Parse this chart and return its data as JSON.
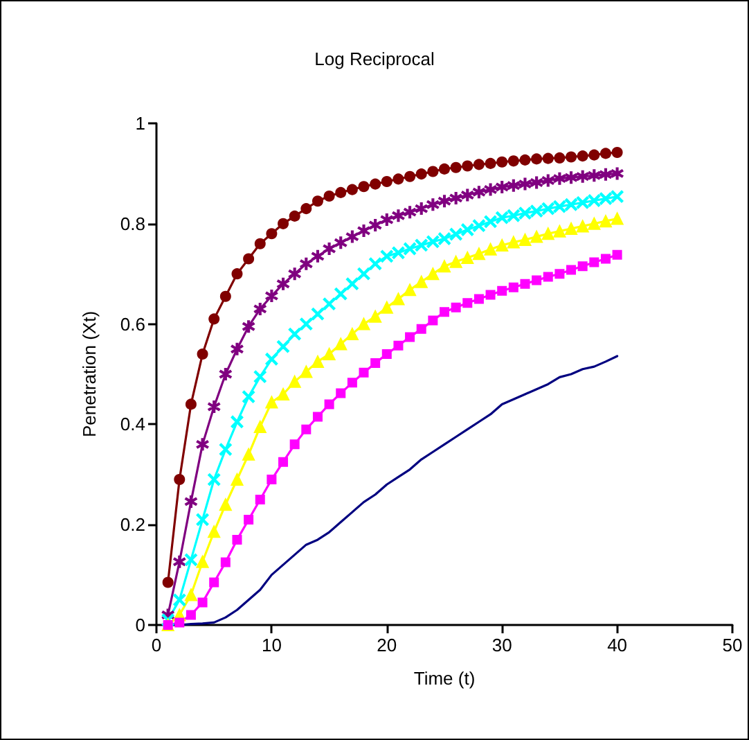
{
  "chart_data": {
    "type": "line",
    "title": "Log Reciprocal",
    "xlabel": "Time (t)",
    "ylabel": "Penetration (Xt)",
    "x": [
      1,
      2,
      3,
      4,
      5,
      6,
      7,
      8,
      9,
      10,
      11,
      12,
      13,
      14,
      15,
      16,
      17,
      18,
      19,
      20,
      21,
      22,
      23,
      24,
      25,
      26,
      27,
      28,
      29,
      30,
      31,
      32,
      33,
      34,
      35,
      36,
      37,
      38,
      39,
      40
    ],
    "xlim": [
      0,
      50
    ],
    "xticks": [
      0,
      10,
      20,
      30,
      40,
      50
    ],
    "ylim": [
      0,
      1
    ],
    "yticks": [
      0,
      0.2,
      0.4,
      0.6,
      0.8,
      1
    ],
    "line_style": "solid",
    "series": [
      {
        "color": "#800000",
        "marker": "circle",
        "values": [
          0.085,
          0.29,
          0.44,
          0.54,
          0.61,
          0.655,
          0.7,
          0.73,
          0.76,
          0.78,
          0.8,
          0.815,
          0.83,
          0.845,
          0.855,
          0.862,
          0.868,
          0.874,
          0.879,
          0.884,
          0.889,
          0.894,
          0.899,
          0.904,
          0.909,
          0.912,
          0.915,
          0.918,
          0.92,
          0.923,
          0.925,
          0.927,
          0.929,
          0.93,
          0.931,
          0.933,
          0.935,
          0.937,
          0.94,
          0.942
        ]
      },
      {
        "color": "#800080",
        "marker": "star",
        "values": [
          0.02,
          0.126,
          0.246,
          0.36,
          0.435,
          0.5,
          0.55,
          0.595,
          0.63,
          0.656,
          0.68,
          0.7,
          0.72,
          0.735,
          0.75,
          0.762,
          0.774,
          0.786,
          0.797,
          0.808,
          0.816,
          0.823,
          0.83,
          0.838,
          0.845,
          0.851,
          0.857,
          0.863,
          0.868,
          0.873,
          0.876,
          0.879,
          0.882,
          0.886,
          0.89,
          0.892,
          0.894,
          0.896,
          0.898,
          0.9
        ]
      },
      {
        "color": "#00ffff",
        "marker": "cross",
        "values": [
          0.01,
          0.05,
          0.13,
          0.21,
          0.29,
          0.35,
          0.405,
          0.455,
          0.495,
          0.53,
          0.555,
          0.58,
          0.6,
          0.62,
          0.64,
          0.66,
          0.68,
          0.7,
          0.72,
          0.735,
          0.742,
          0.75,
          0.757,
          0.764,
          0.77,
          0.779,
          0.788,
          0.796,
          0.804,
          0.812,
          0.816,
          0.821,
          0.825,
          0.83,
          0.834,
          0.838,
          0.842,
          0.846,
          0.85,
          0.854
        ]
      },
      {
        "color": "#ffff00",
        "marker": "triangle",
        "values": [
          0,
          0.02,
          0.06,
          0.126,
          0.186,
          0.24,
          0.29,
          0.34,
          0.395,
          0.444,
          0.46,
          0.485,
          0.505,
          0.525,
          0.54,
          0.56,
          0.58,
          0.6,
          0.615,
          0.633,
          0.65,
          0.668,
          0.684,
          0.7,
          0.715,
          0.724,
          0.732,
          0.74,
          0.749,
          0.757,
          0.763,
          0.768,
          0.774,
          0.78,
          0.785,
          0.79,
          0.795,
          0.8,
          0.805,
          0.81
        ]
      },
      {
        "color": "#ff00ff",
        "marker": "square",
        "values": [
          0,
          0.005,
          0.02,
          0.045,
          0.085,
          0.125,
          0.17,
          0.21,
          0.25,
          0.29,
          0.325,
          0.36,
          0.39,
          0.415,
          0.44,
          0.462,
          0.483,
          0.503,
          0.522,
          0.54,
          0.557,
          0.574,
          0.59,
          0.607,
          0.624,
          0.633,
          0.642,
          0.65,
          0.658,
          0.666,
          0.673,
          0.68,
          0.687,
          0.694,
          0.7,
          0.708,
          0.715,
          0.723,
          0.73,
          0.738
        ]
      },
      {
        "color": "#000080",
        "marker": "none",
        "values": [
          0,
          0,
          0.002,
          0.003,
          0.005,
          0.015,
          0.03,
          0.05,
          0.07,
          0.1,
          0.12,
          0.14,
          0.16,
          0.17,
          0.185,
          0.205,
          0.225,
          0.245,
          0.26,
          0.28,
          0.295,
          0.31,
          0.33,
          0.345,
          0.36,
          0.375,
          0.39,
          0.405,
          0.42,
          0.44,
          0.45,
          0.46,
          0.47,
          0.48,
          0.494,
          0.5,
          0.51,
          0.515,
          0.525,
          0.536
        ]
      }
    ]
  }
}
